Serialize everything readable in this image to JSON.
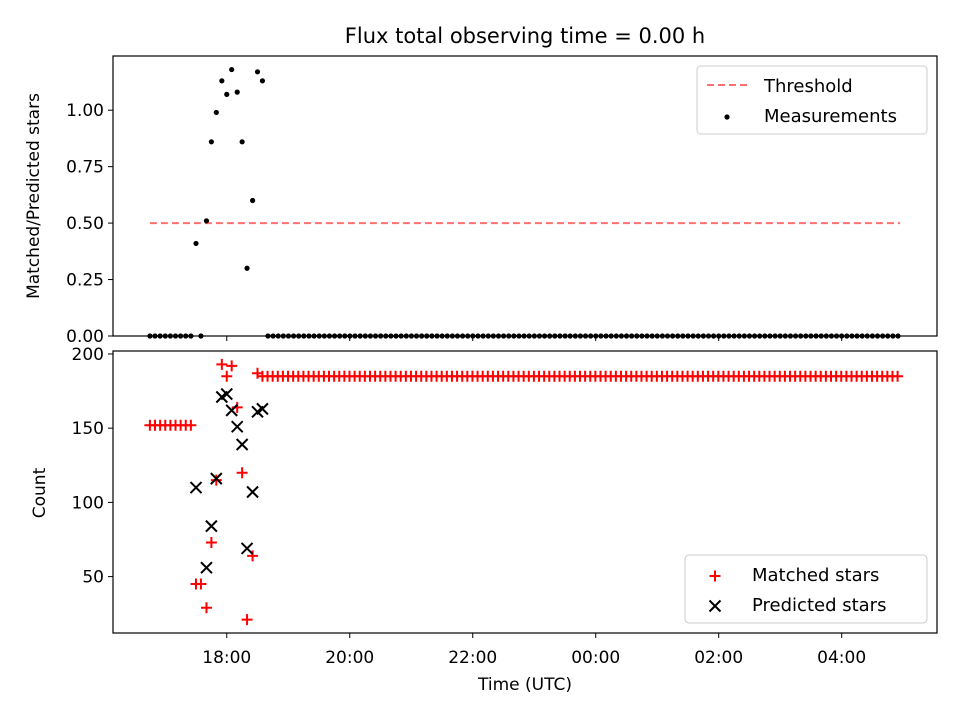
{
  "chart_data": {
    "type": "scatter",
    "title": "Flux total observing time = 0.00 h",
    "shared_x": {
      "label": "Time (UTC)",
      "range_hours": [
        16.15,
        29.55
      ],
      "ticks": [
        {
          "value": 18,
          "label": "18:00"
        },
        {
          "value": 20,
          "label": "20:00"
        },
        {
          "value": 22,
          "label": "22:00"
        },
        {
          "value": 24,
          "label": "00:00"
        },
        {
          "value": 26,
          "label": "02:00"
        },
        {
          "value": 28,
          "label": "04:00"
        }
      ]
    },
    "panels": [
      {
        "id": "ratio",
        "ylabel": "Matched/Predicted stars",
        "ylim": [
          0,
          1.24
        ],
        "yticks": [
          {
            "value": 0,
            "label": "0.00"
          },
          {
            "value": 0.25,
            "label": "0.25"
          },
          {
            "value": 0.5,
            "label": "0.50"
          },
          {
            "value": 0.75,
            "label": "0.75"
          },
          {
            "value": 1.0,
            "label": "1.00"
          }
        ],
        "legend": {
          "placement": "upper right"
        },
        "threshold": {
          "name": "Threshold",
          "y": 0.5,
          "x_start": 16.75,
          "x_end": 28.95,
          "color": "#ff7070",
          "style": "dashed"
        },
        "series": [
          {
            "name": "Measurements",
            "marker": "dot",
            "color": "#000000",
            "points": [
              [
                17.5,
                0.41
              ],
              [
                17.67,
                0.51
              ],
              [
                17.75,
                0.86
              ],
              [
                17.83,
                0.99
              ],
              [
                17.92,
                1.13
              ],
              [
                18.0,
                1.07
              ],
              [
                18.08,
                1.18
              ],
              [
                18.17,
                1.08
              ],
              [
                18.25,
                0.86
              ],
              [
                18.33,
                0.3
              ],
              [
                18.42,
                0.6
              ],
              [
                18.5,
                1.17
              ],
              [
                18.58,
                1.13
              ],
              [
                17.58,
                0.0
              ]
            ],
            "zero_run_1": {
              "start": 16.75,
              "end": 17.42,
              "step": 0.0833,
              "y": 0
            },
            "zero_run_2": {
              "start": 18.67,
              "end": 28.95,
              "step": 0.0833,
              "y": 0
            }
          }
        ]
      },
      {
        "id": "counts",
        "ylabel": "Count",
        "ylim": [
          12,
          202
        ],
        "yticks": [
          {
            "value": 50,
            "label": "50"
          },
          {
            "value": 100,
            "label": "100"
          },
          {
            "value": 150,
            "label": "150"
          },
          {
            "value": 200,
            "label": "200"
          }
        ],
        "legend": {
          "placement": "lower right"
        },
        "series": [
          {
            "name": "Matched stars",
            "marker": "plus",
            "color": "#ff0000",
            "points": [
              [
                17.5,
                45
              ],
              [
                17.58,
                45
              ],
              [
                17.67,
                29
              ],
              [
                17.75,
                73
              ],
              [
                17.83,
                115
              ],
              [
                17.92,
                193
              ],
              [
                18.0,
                185
              ],
              [
                18.08,
                192
              ],
              [
                18.17,
                164
              ],
              [
                18.25,
                120
              ],
              [
                18.33,
                21
              ],
              [
                18.42,
                64
              ],
              [
                18.5,
                187
              ]
            ],
            "flat_run_1": {
              "start": 16.75,
              "end": 17.42,
              "step": 0.0833,
              "y": 152
            },
            "flat_run_2": {
              "start": 18.58,
              "end": 28.95,
              "step": 0.0833,
              "y": 185
            }
          },
          {
            "name": "Predicted stars",
            "marker": "x",
            "color": "#000000",
            "points": [
              [
                17.5,
                110
              ],
              [
                17.67,
                56
              ],
              [
                17.75,
                84
              ],
              [
                17.83,
                116
              ],
              [
                17.92,
                171
              ],
              [
                18.0,
                173
              ],
              [
                18.08,
                162
              ],
              [
                18.17,
                151
              ],
              [
                18.25,
                139
              ],
              [
                18.33,
                69
              ],
              [
                18.42,
                107
              ],
              [
                18.5,
                161
              ],
              [
                18.58,
                163
              ]
            ]
          }
        ]
      }
    ]
  }
}
